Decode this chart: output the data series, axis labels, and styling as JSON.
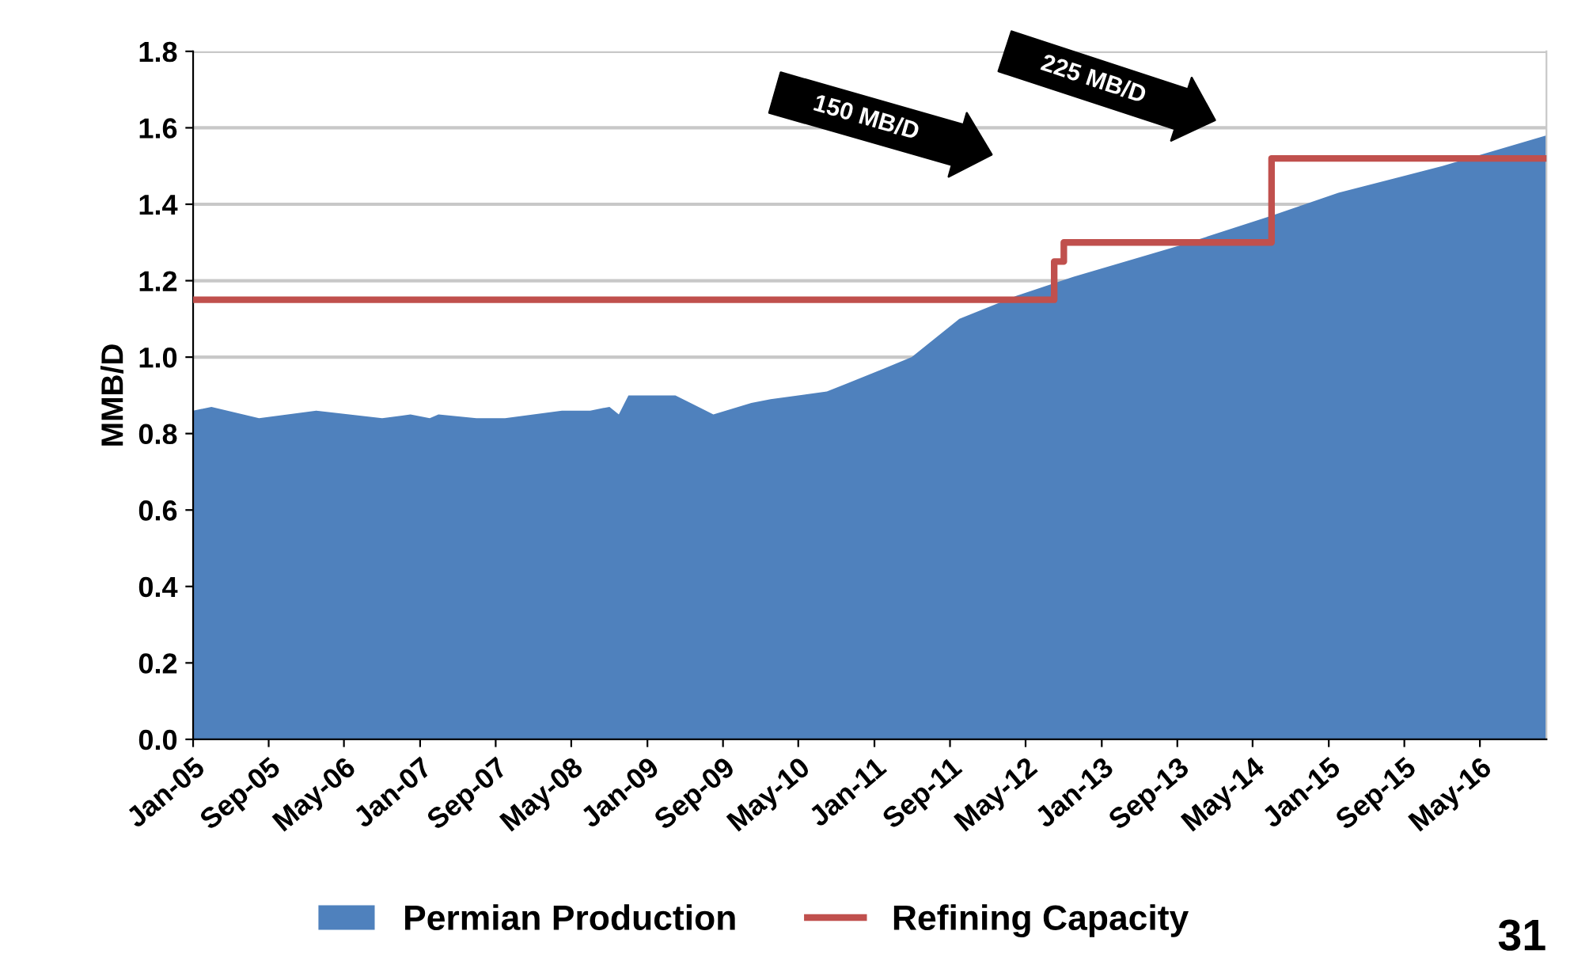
{
  "chart_data": {
    "type": "area",
    "ylabel": "MMB/D",
    "xlim": [
      "2005-01",
      "2016-12"
    ],
    "xticks": [
      {
        "value": "2005-01",
        "label": "Jan-05"
      },
      {
        "value": "2005-09",
        "label": "Sep-05"
      },
      {
        "value": "2006-05",
        "label": "May-06"
      },
      {
        "value": "2007-01",
        "label": "Jan-07"
      },
      {
        "value": "2007-09",
        "label": "Sep-07"
      },
      {
        "value": "2008-05",
        "label": "May-08"
      },
      {
        "value": "2009-01",
        "label": "Jan-09"
      },
      {
        "value": "2009-09",
        "label": "Sep-09"
      },
      {
        "value": "2010-05",
        "label": "May-10"
      },
      {
        "value": "2011-01",
        "label": "Jan-11"
      },
      {
        "value": "2011-09",
        "label": "Sep-11"
      },
      {
        "value": "2012-05",
        "label": "May-12"
      },
      {
        "value": "2013-01",
        "label": "Jan-13"
      },
      {
        "value": "2013-09",
        "label": "Sep-13"
      },
      {
        "value": "2014-05",
        "label": "May-14"
      },
      {
        "value": "2015-01",
        "label": "Jan-15"
      },
      {
        "value": "2015-09",
        "label": "Sep-15"
      },
      {
        "value": "2016-05",
        "label": "May-16"
      }
    ],
    "ylim": [
      0,
      1.8
    ],
    "yticks": [
      {
        "value": 0,
        "label": "0.0"
      },
      {
        "value": 0.2,
        "label": "0.2"
      },
      {
        "value": 0.4,
        "label": "0.4"
      },
      {
        "value": 0.6,
        "label": "0.6"
      },
      {
        "value": 0.8,
        "label": "0.8"
      },
      {
        "value": 1.0,
        "label": "1.0"
      },
      {
        "value": 1.2,
        "label": "1.2"
      },
      {
        "value": 1.4,
        "label": "1.4"
      },
      {
        "value": 1.6,
        "label": "1.6"
      },
      {
        "value": 1.8,
        "label": "1.8"
      }
    ],
    "grid": "y",
    "legend": "bottom",
    "series": [
      {
        "name": "Permian Production",
        "color": "#4f81bd",
        "x": [
          "2005-01",
          "2005-03",
          "2005-08",
          "2005-11",
          "2006-02",
          "2006-09",
          "2006-12",
          "2007-02",
          "2007-03",
          "2007-07",
          "2007-10",
          "2008-04",
          "2008-07",
          "2008-09",
          "2008-10",
          "2008-11",
          "2009-04",
          "2009-08",
          "2009-12",
          "2010-02",
          "2010-08",
          "2010-10",
          "2011-02",
          "2011-05",
          "2011-10",
          "2012-04",
          "2012-10",
          "2013-09",
          "2014-07",
          "2015-02",
          "2016-01",
          "2016-12"
        ],
        "values": [
          0.86,
          0.87,
          0.84,
          0.85,
          0.86,
          0.84,
          0.85,
          0.84,
          0.85,
          0.84,
          0.84,
          0.86,
          0.86,
          0.87,
          0.85,
          0.9,
          0.9,
          0.85,
          0.88,
          0.89,
          0.91,
          0.93,
          0.97,
          1.0,
          1.1,
          1.16,
          1.21,
          1.29,
          1.37,
          1.43,
          1.5,
          1.58
        ]
      },
      {
        "name": "Refining Capacity",
        "type": "step",
        "color": "#c0504d",
        "x": [
          "2005-01",
          "2012-08",
          "2012-09",
          "2014-07",
          "2016-12"
        ],
        "values": [
          1.15,
          1.25,
          1.3,
          1.52,
          1.52
        ]
      }
    ],
    "annotations": [
      "150 MB/D",
      "225 MB/D",
      "31"
    ]
  }
}
